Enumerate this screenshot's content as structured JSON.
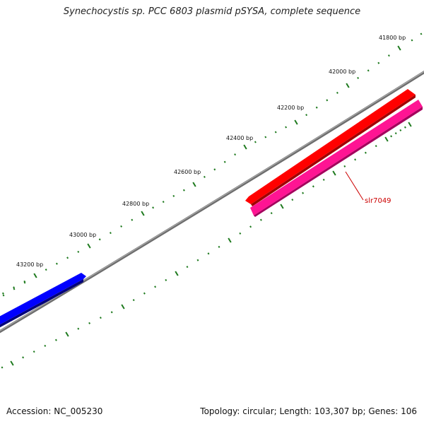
{
  "title": "Synechocystis sp. PCC 6803 plasmid pSYSA, complete sequence",
  "footer": {
    "accession": "Accession: NC_005230",
    "summary": "Topology: circular; Length: 103,307 bp; Genes: 106"
  },
  "scale": {
    "unit": "bp",
    "major_ticks": [
      {
        "position": 41800,
        "label": "41800 bp"
      },
      {
        "position": 42000,
        "label": "42000 bp"
      },
      {
        "position": 42200,
        "label": "42200 bp"
      },
      {
        "position": 42400,
        "label": "42400 bp"
      },
      {
        "position": 42600,
        "label": "42600 bp"
      },
      {
        "position": 42800,
        "label": "42800 bp"
      },
      {
        "position": 43000,
        "label": "43000 bp"
      },
      {
        "position": 43200,
        "label": "43200 bp"
      }
    ],
    "tick_color": "#1e7a1e"
  },
  "backbone_color": "#808080",
  "features": [
    {
      "name": "slr7049",
      "color": "#ff1493",
      "label_color": "#cc0000"
    },
    {
      "color": "#ff0000"
    },
    {
      "color": "#0000ff"
    }
  ]
}
